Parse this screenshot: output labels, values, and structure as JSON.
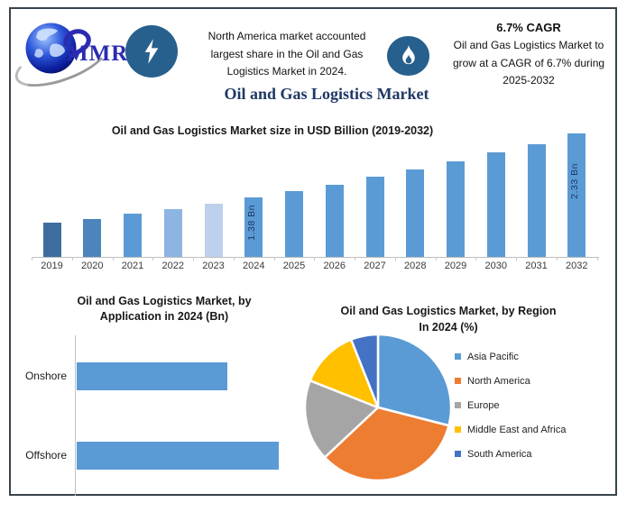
{
  "logo": {
    "text": "MMR"
  },
  "header": {
    "highlight_na": {
      "icon": "lightning-bolt",
      "lines": [
        "North America market accounted",
        "largest share in the Oil and Gas",
        "Logistics Market in 2024."
      ]
    },
    "highlight_cagr": {
      "icon": "flame",
      "heading": "6.7% CAGR",
      "lines": [
        "Oil and Gas Logistics Market to",
        "grow at a CAGR of 6.7% during",
        "2025-2032"
      ]
    }
  },
  "page_title": "Oil and Gas Logistics Market",
  "colors": {
    "accent_blue": "#5B9BD5",
    "icon_circle": "#27608D",
    "title_navy": "#1F3864",
    "logo_blue": "#2B2BB2",
    "axis_gray": "#BFBFBF",
    "card_border": "#39434B"
  },
  "chart_data": [
    {
      "type": "bar",
      "title": "Oil and Gas Logistics Market size in USD Billion (2019-2032)",
      "unit": "USD Billion",
      "categories": [
        "2019",
        "2020",
        "2021",
        "2022",
        "2023",
        "2024",
        "2025",
        "2026",
        "2027",
        "2028",
        "2029",
        "2030",
        "2031",
        "2032"
      ],
      "values": [
        1.0,
        1.06,
        1.14,
        1.21,
        1.29,
        1.38,
        1.47,
        1.57,
        1.68,
        1.79,
        1.91,
        2.04,
        2.17,
        2.33
      ],
      "data_labels": [
        {
          "category": "2024",
          "text": "1.38 Bn"
        },
        {
          "category": "2032",
          "text": "2.33 Bn"
        }
      ],
      "bar_colors": [
        "#3E6E9E",
        "#4C84BC",
        "#5B9BD5",
        "#8EB4E3",
        "#BDD0EC",
        "#5B9BD5",
        "#5B9BD5",
        "#5B9BD5",
        "#5B9BD5",
        "#5B9BD5",
        "#5B9BD5",
        "#5B9BD5",
        "#5B9BD5",
        "#5B9BD5"
      ],
      "xlabel": "",
      "ylabel": "",
      "ylim": [
        0,
        2.5
      ],
      "grid": false
    },
    {
      "type": "bar",
      "orientation": "horizontal",
      "title_lines": [
        "Oil and Gas Logistics Market, by",
        "Application in 2024 (Bn)"
      ],
      "categories": [
        "Onshore",
        "Offshore"
      ],
      "values": [
        0.59,
        0.79
      ],
      "unit": "Bn",
      "bar_color": "#5B9BD5",
      "grid": false
    },
    {
      "type": "pie",
      "title_lines": [
        "Oil and Gas Logistics Market, by Region",
        "In 2024 (%)"
      ],
      "labels": [
        "Asia Pacific",
        "North America",
        "Europe",
        "Middle East and Africa",
        "South America"
      ],
      "values": [
        29,
        34,
        18,
        13,
        6
      ],
      "colors": [
        "#5B9BD5",
        "#ED7D31",
        "#A5A5A5",
        "#FFC000",
        "#4472C4"
      ],
      "legend_position": "right"
    }
  ]
}
